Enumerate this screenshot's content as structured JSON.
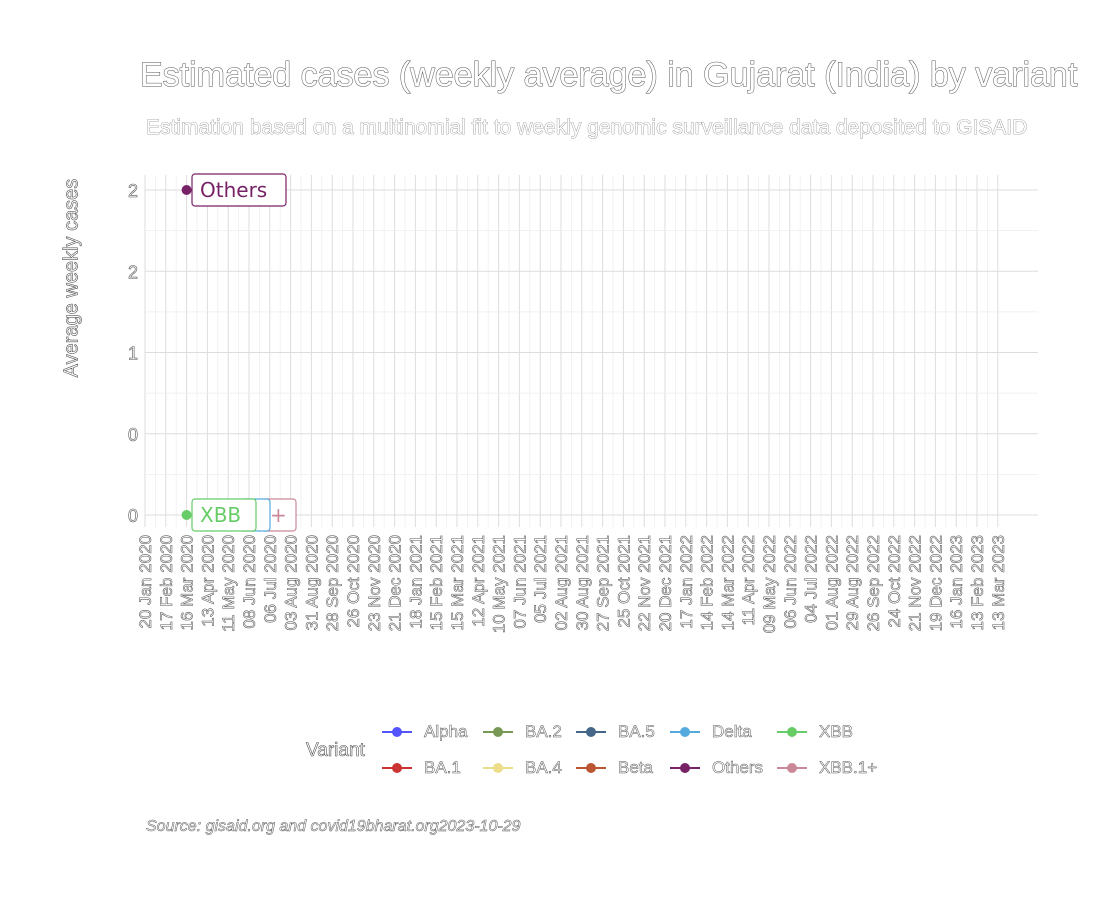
{
  "chart_data": {
    "type": "line",
    "title": "Estimated cases (weekly average) in Gujarat (India) by variant",
    "subtitle": "Estimation based on a multinomial fit to weekly genomic surveillance data deposited to GISAID",
    "xlabel": "",
    "ylabel": "Average weekly cases",
    "caption": "Source: gisaid.org and covid19bharat.org2023-10-29",
    "y_tick_labels": [
      "0",
      "0",
      "1",
      "2",
      "2"
    ],
    "ylim": [
      0,
      2
    ],
    "x_tick_labels": [
      "20 Jan 2020",
      "17 Feb 2020",
      "16 Mar 2020",
      "13 Apr 2020",
      "11 May 2020",
      "08 Jun 2020",
      "06 Jul 2020",
      "03 Aug 2020",
      "31 Aug 2020",
      "28 Sep 2020",
      "26 Oct 2020",
      "23 Nov 2020",
      "21 Dec 2020",
      "18 Jan 2021",
      "15 Feb 2021",
      "15 Mar 2021",
      "12 Apr 2021",
      "10 May 2021",
      "07 Jun 2021",
      "05 Jul 2021",
      "02 Aug 2021",
      "30 Aug 2021",
      "27 Sep 2021",
      "25 Oct 2021",
      "22 Nov 2021",
      "20 Dec 2021",
      "17 Jan 2022",
      "14 Feb 2022",
      "14 Mar 2022",
      "11 Apr 2022",
      "09 May 2022",
      "06 Jun 2022",
      "04 Jul 2022",
      "01 Aug 2022",
      "29 Aug 2022",
      "26 Sep 2022",
      "24 Oct 2022",
      "21 Nov 2022",
      "19 Dec 2022",
      "16 Jan 2023",
      "13 Feb 2023",
      "13 Mar 2023"
    ],
    "grid": true,
    "legend_title": "Variant",
    "legend_position": "bottom",
    "series": [
      {
        "name": "Alpha",
        "color": "#5555ff"
      },
      {
        "name": "BA.1",
        "color": "#cc3333"
      },
      {
        "name": "BA.2",
        "color": "#779955"
      },
      {
        "name": "BA.4",
        "color": "#eedd88"
      },
      {
        "name": "BA.5",
        "color": "#446688"
      },
      {
        "name": "Beta",
        "color": "#bb5533"
      },
      {
        "name": "Delta",
        "color": "#55aadd"
      },
      {
        "name": "Others",
        "color": "#772266"
      },
      {
        "name": "XBB",
        "color": "#66cc66"
      },
      {
        "name": "XBB.1+",
        "color": "#cc8899"
      }
    ],
    "points": [
      {
        "series": "Others",
        "x": "16 Mar 2020",
        "y": 2
      },
      {
        "series": "XBB",
        "x": "16 Mar 2020",
        "y": 0
      }
    ],
    "point_labels": [
      {
        "text": "Others",
        "series": "Others"
      },
      {
        "text": "XBB",
        "series": "XBB"
      },
      {
        "text": "+",
        "series": "XBB.1+"
      }
    ]
  }
}
